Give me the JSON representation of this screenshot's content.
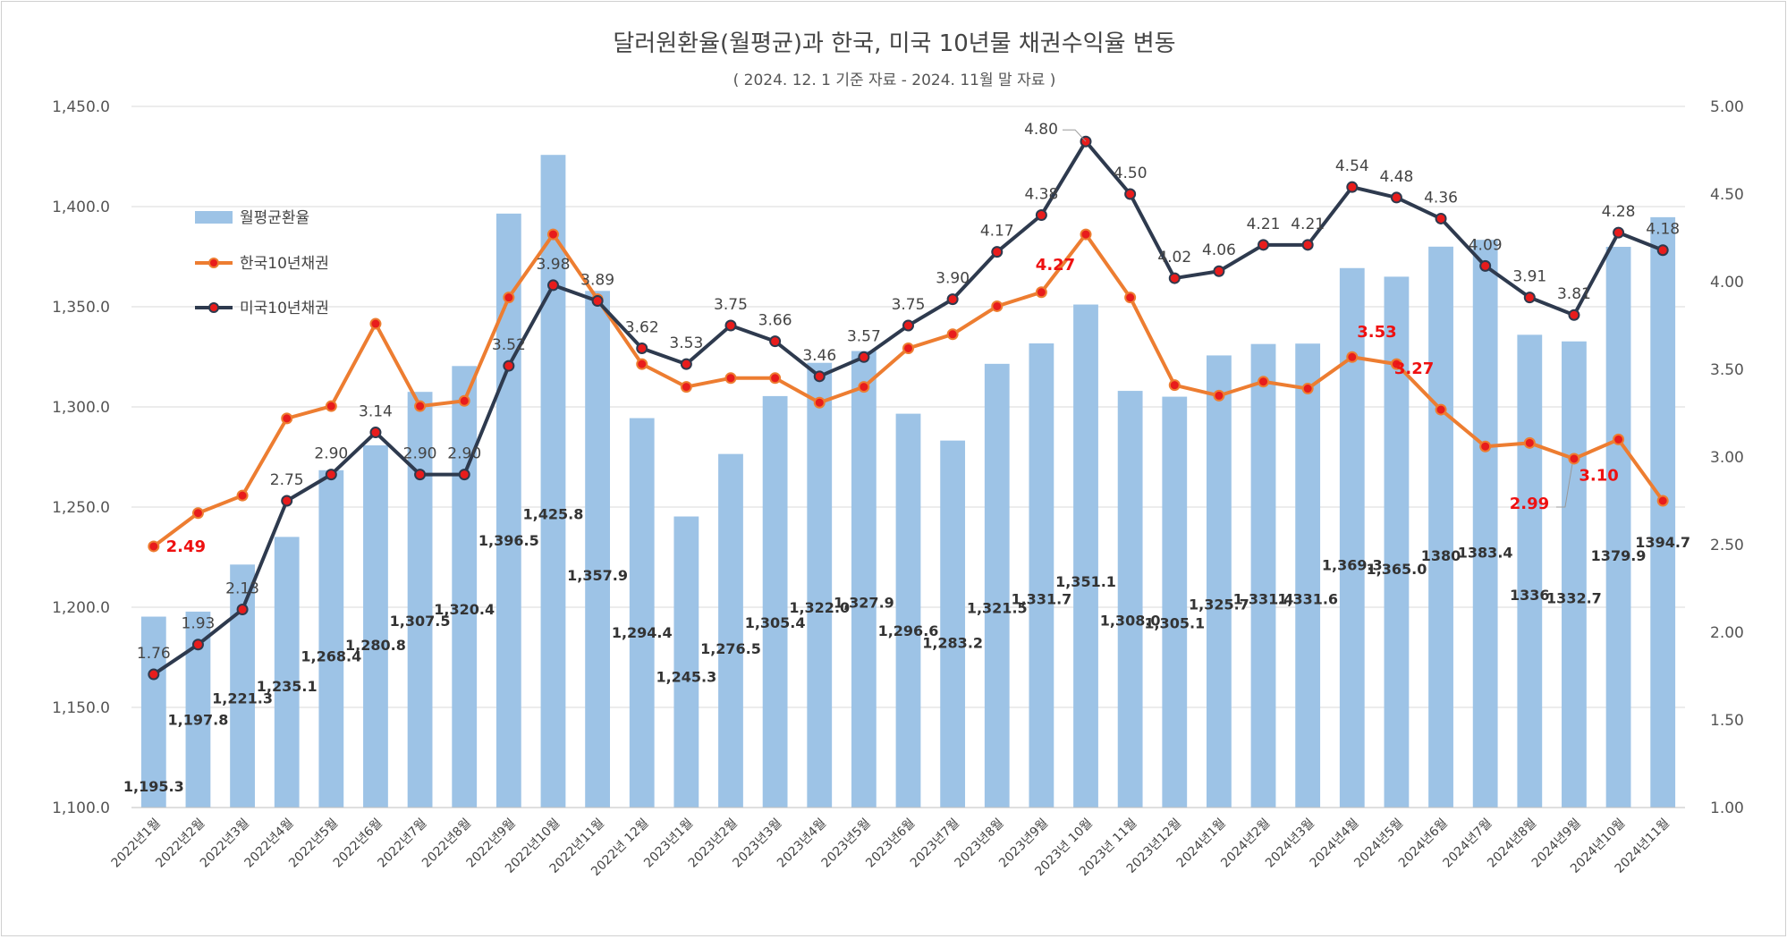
{
  "colors": {
    "bar": "#9dc3e6",
    "kr": "#ed7d31",
    "us": "#2e3a4e",
    "marker": "#e81c1c",
    "grid": "#d9d9d9",
    "kr_label": "#ee1111"
  },
  "chart_data": {
    "type": "bar",
    "title": "달러원환율(월평균)과 한국, 미국 10년물 채권수익율 변동",
    "subtitle": "( 2024. 12. 1 기준 자료 - 2024. 11월 말 자료 )",
    "categories": [
      "2022년1월",
      "2022년2월",
      "2022년3월",
      "2022년4월",
      "2022년5월",
      "2022년6월",
      "2022년7월",
      "2022년8월",
      "2022년9월",
      "2022년10월",
      "2022년11월",
      "2022년 12월",
      "2023년1월",
      "2023년2월",
      "2023년3월",
      "2023년4월",
      "2023년5월",
      "2023년6월",
      "2023년7월",
      "2023년8월",
      "2023년9월",
      "2023년 10월",
      "2023년 11월",
      "2023년12월",
      "2024년1월",
      "2024년2월",
      "2024년3월",
      "2024년4월",
      "2024년5월",
      "2024년6월",
      "2024년7월",
      "2024년8월",
      "2024년9월",
      "2024년10월",
      "2024년11월"
    ],
    "y_left": {
      "min": 1100,
      "max": 1450,
      "step": 50,
      "tick_labels": [
        "1,100.0",
        "1,150.0",
        "1,200.0",
        "1,250.0",
        "1,300.0",
        "1,350.0",
        "1,400.0",
        "1,450.0"
      ]
    },
    "y_right": {
      "min": 1.0,
      "max": 5.0,
      "step": 0.5,
      "tick_labels": [
        "1.00",
        "1.50",
        "2.00",
        "2.50",
        "3.00",
        "3.50",
        "4.00",
        "4.50",
        "5.00"
      ]
    },
    "grid": true,
    "legend_position": "upper-left inside plot",
    "series": [
      {
        "name": "월평균환율",
        "type": "bar",
        "axis": "left",
        "values": [
          1195.3,
          1197.8,
          1221.3,
          1235.1,
          1268.4,
          1280.8,
          1307.5,
          1320.4,
          1396.5,
          1425.8,
          1357.9,
          1294.4,
          1245.3,
          1276.5,
          1305.4,
          1322.0,
          1327.9,
          1296.6,
          1283.2,
          1321.5,
          1331.7,
          1351.1,
          1308.0,
          1305.1,
          1325.7,
          1331.4,
          1331.6,
          1369.3,
          1365.0,
          1380,
          1383.4,
          1336,
          1332.7,
          1379.9,
          1394.7
        ],
        "labels": [
          "1,195.3",
          "1,197.8",
          "1,221.3",
          "1,235.1",
          "1,268.4",
          "1,280.8",
          "1,307.5",
          "1,320.4",
          "1,396.5",
          "1,425.8",
          "1,357.9",
          "1,294.4",
          "1,245.3",
          "1,276.5",
          "1,305.4",
          "1,322.0",
          "1,327.9",
          "1,296.6",
          "1,283.2",
          "1,321.5",
          "1,331.7",
          "1,351.1",
          "1,308.0",
          "1,305.1",
          "1,325.7",
          "1,331.4",
          "1,331.6",
          "1,369.3",
          "1,365.0",
          "1380",
          "1383.4",
          "1336",
          "1332.7",
          "1379.9",
          "1394.7"
        ]
      },
      {
        "name": "한국10년채권",
        "type": "line",
        "axis": "right",
        "values": [
          2.49,
          2.68,
          2.78,
          3.22,
          3.29,
          3.76,
          3.29,
          3.32,
          3.91,
          4.27,
          3.9,
          3.53,
          3.4,
          3.45,
          3.45,
          3.31,
          3.4,
          3.62,
          3.7,
          3.86,
          3.94,
          4.27,
          3.91,
          3.41,
          3.35,
          3.43,
          3.39,
          3.57,
          3.53,
          3.27,
          3.06,
          3.08,
          2.99,
          3.1,
          2.75
        ],
        "labels": [
          "2.49",
          "3.53",
          "3.27",
          "2.99",
          "3.10",
          "4.27"
        ],
        "label_indices": [
          0,
          28,
          29,
          32,
          33,
          21
        ]
      },
      {
        "name": "미국10년채권",
        "type": "line",
        "axis": "right",
        "values": [
          1.76,
          1.93,
          2.13,
          2.75,
          2.9,
          3.14,
          2.9,
          2.9,
          3.52,
          3.98,
          3.89,
          3.62,
          3.53,
          3.75,
          3.66,
          3.46,
          3.57,
          3.75,
          3.9,
          4.17,
          4.38,
          4.8,
          4.5,
          4.02,
          4.06,
          4.21,
          4.21,
          4.54,
          4.48,
          4.36,
          4.09,
          3.91,
          3.81,
          4.28,
          4.18
        ],
        "labels": [
          "1.76",
          "1.93",
          "2.13",
          "2.75",
          "2.90",
          "3.14",
          "2.90",
          "2.90",
          "3.52",
          "3.98",
          "3.89",
          "3.62",
          "3.53",
          "3.75",
          "3.66",
          "3.46",
          "3.57",
          "3.75",
          "3.90",
          "4.17",
          "4.38",
          "4.80",
          "4.50",
          "4.02",
          "4.06",
          "4.21",
          "4.21",
          "4.54",
          "4.48",
          "4.36",
          "4.09",
          "3.91",
          "3.81",
          "4.28",
          "4.18"
        ]
      }
    ]
  }
}
